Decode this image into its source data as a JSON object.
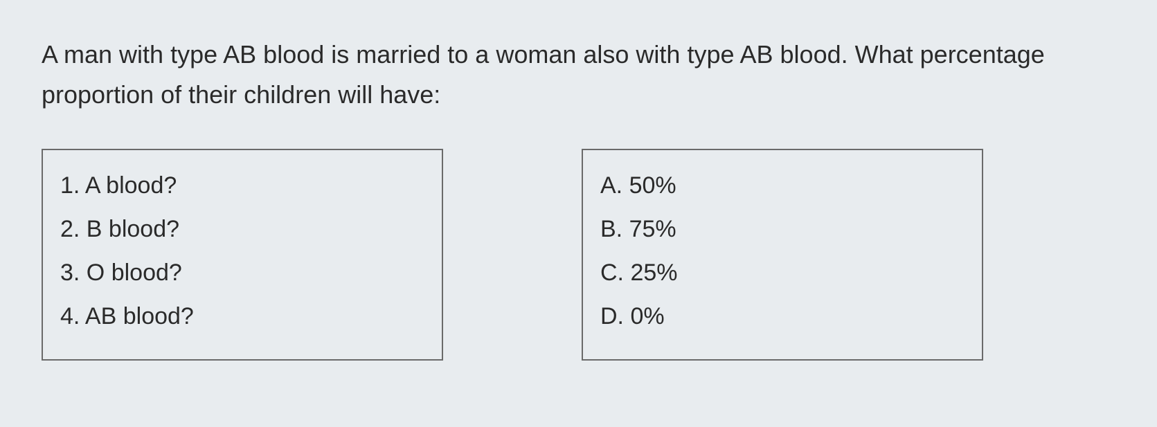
{
  "question": {
    "text": "A man with type AB blood is married to a woman also with type AB blood. What percentage proportion of their children will have:"
  },
  "left_box": {
    "items": [
      {
        "label": "1. A blood?"
      },
      {
        "label": "2. B blood?"
      },
      {
        "label": "3. O blood?"
      },
      {
        "label": "4. AB blood?"
      }
    ]
  },
  "right_box": {
    "items": [
      {
        "label": "A. 50%"
      },
      {
        "label": "B. 75%"
      },
      {
        "label": "C. 25%"
      },
      {
        "label": "D. 0%"
      }
    ]
  },
  "styling": {
    "background_color": "#e8ecef",
    "text_color": "#2a2a2a",
    "border_color": "#6a6a6a",
    "question_fontsize": 36,
    "item_fontsize": 34,
    "box_border_width": 2
  }
}
